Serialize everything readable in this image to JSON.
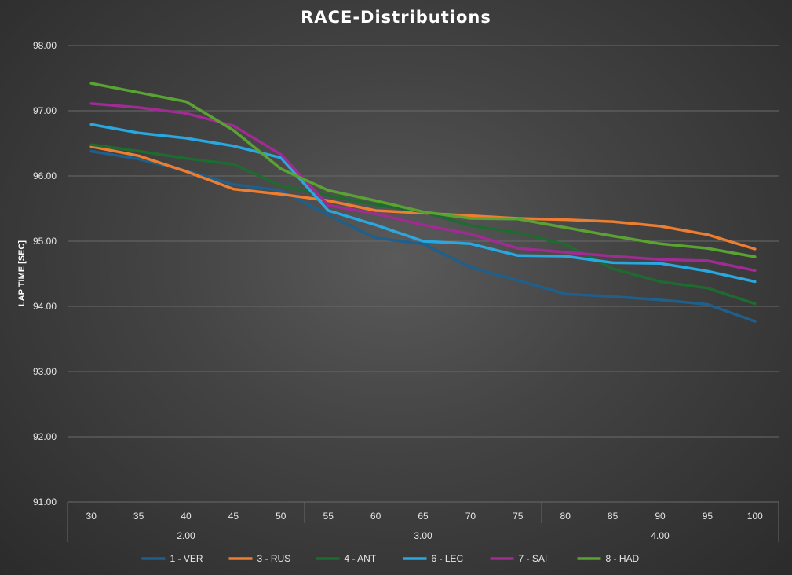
{
  "chart_data": {
    "type": "line",
    "title": "RACE-Distributions",
    "ylabel": "LAP TIME [SEC]",
    "xlabel": "",
    "ylim": [
      91,
      98
    ],
    "yticks": [
      "91.00",
      "92.00",
      "93.00",
      "94.00",
      "95.00",
      "96.00",
      "97.00",
      "98.00"
    ],
    "categories": [
      "30",
      "35",
      "40",
      "45",
      "50",
      "55",
      "60",
      "65",
      "70",
      "75",
      "80",
      "85",
      "90",
      "95",
      "100"
    ],
    "groups": [
      {
        "label": "2.00",
        "span": 5
      },
      {
        "label": "3.00",
        "span": 5
      },
      {
        "label": "4.00",
        "span": 5
      }
    ],
    "grid": true,
    "legend_position": "bottom",
    "series": [
      {
        "name": "1 - VER",
        "color": "#1f5f8b",
        "values": [
          96.38,
          96.26,
          96.08,
          95.87,
          95.78,
          95.4,
          95.05,
          94.96,
          94.6,
          94.4,
          94.19,
          94.15,
          94.1,
          94.03,
          93.77
        ]
      },
      {
        "name": "3 - RUS",
        "color": "#ed7d31",
        "values": [
          96.45,
          96.31,
          96.07,
          95.8,
          95.72,
          95.62,
          95.47,
          95.43,
          95.39,
          95.35,
          95.33,
          95.3,
          95.23,
          95.1,
          94.88
        ]
      },
      {
        "name": "4 - ANT",
        "color": "#1e6b30",
        "values": [
          96.48,
          96.38,
          96.27,
          96.18,
          95.85,
          95.7,
          95.56,
          95.45,
          95.24,
          95.13,
          94.95,
          94.58,
          94.38,
          94.28,
          94.04
        ]
      },
      {
        "name": "6 - LEC",
        "color": "#2aa7df",
        "values": [
          96.79,
          96.66,
          96.58,
          96.46,
          96.28,
          95.47,
          95.25,
          95.0,
          94.96,
          94.78,
          94.77,
          94.67,
          94.66,
          94.54,
          94.38
        ]
      },
      {
        "name": "7 - SAI",
        "color": "#a02b93",
        "values": [
          97.11,
          97.05,
          96.96,
          96.77,
          96.33,
          95.55,
          95.42,
          95.25,
          95.11,
          94.89,
          94.83,
          94.77,
          94.72,
          94.7,
          94.55
        ]
      },
      {
        "name": "8 - HAD",
        "color": "#5aa332",
        "values": [
          97.42,
          97.28,
          97.14,
          96.7,
          96.11,
          95.78,
          95.62,
          95.45,
          95.35,
          95.34,
          95.21,
          95.08,
          94.96,
          94.89,
          94.76
        ]
      }
    ]
  }
}
